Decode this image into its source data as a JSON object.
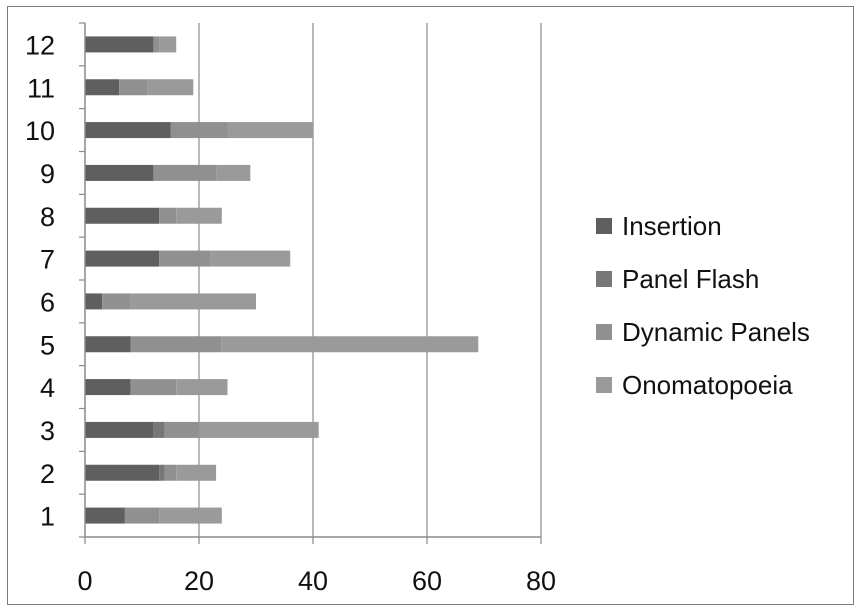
{
  "chart_data": {
    "type": "bar",
    "orientation": "horizontal",
    "stacked": true,
    "title": "",
    "xlabel": "",
    "ylabel": "",
    "categories": [
      "1",
      "2",
      "3",
      "4",
      "5",
      "6",
      "7",
      "8",
      "9",
      "10",
      "11",
      "12"
    ],
    "xlim": [
      0,
      80
    ],
    "x_ticks": [
      "0",
      "20",
      "40",
      "60",
      "80"
    ],
    "grid": "vertical",
    "legend_position": "right",
    "series": [
      {
        "name": "Insertion",
        "color": "#5f5f5f",
        "values": [
          7,
          13,
          12,
          8,
          8,
          3,
          13,
          13,
          12,
          15,
          6,
          12
        ]
      },
      {
        "name": "Panel Flash",
        "color": "#777777",
        "values": [
          0,
          1,
          2,
          0,
          0,
          0,
          0,
          0,
          0,
          0,
          0,
          0
        ]
      },
      {
        "name": "Dynamic Panels",
        "color": "#909090",
        "values": [
          6,
          2,
          6,
          8,
          16,
          5,
          9,
          3,
          11,
          10,
          5,
          1
        ]
      },
      {
        "name": "Onomatopoeia",
        "color": "#9a9a9a",
        "values": [
          11,
          7,
          21,
          9,
          45,
          22,
          14,
          8,
          6,
          15,
          8,
          3
        ]
      }
    ]
  }
}
